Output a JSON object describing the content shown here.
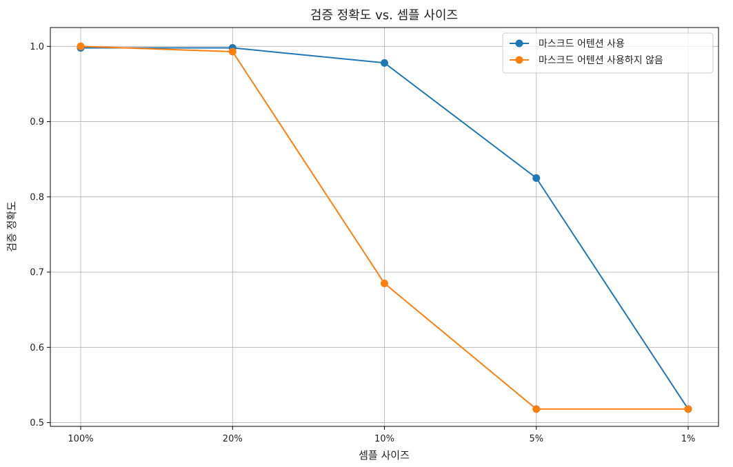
{
  "chart_data": {
    "type": "line",
    "title": "검증 정확도 vs. 셈플 사이즈",
    "xlabel": "셈플 사이즈",
    "ylabel": "검증 정확도",
    "categories": [
      "100%",
      "20%",
      "10%",
      "5%",
      "1%"
    ],
    "yticks": [
      "0.5",
      "0.6",
      "0.7",
      "0.8",
      "0.9",
      "1.0"
    ],
    "ylim": [
      0.495,
      1.025
    ],
    "grid": true,
    "legend_position": "top-right",
    "series": [
      {
        "name": "마스크드 어텐션 사용",
        "color": "#1f77b4",
        "values": [
          0.998,
          0.998,
          0.978,
          0.825,
          0.518
        ]
      },
      {
        "name": "마스크드 어텐션 사용하지 않음",
        "color": "#ff7f0e",
        "values": [
          1.0,
          0.993,
          0.685,
          0.518,
          0.518
        ]
      }
    ]
  }
}
